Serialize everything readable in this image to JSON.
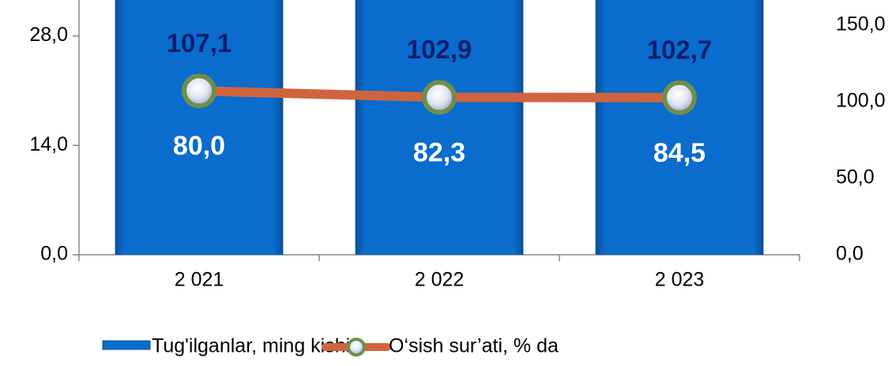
{
  "chart_data": {
    "type": "bar_line",
    "categories": [
      "2 021",
      "2 022",
      "2 023"
    ],
    "series": [
      {
        "name": "Tug'ilganlar, ming kishi",
        "color": "#0a6ccc",
        "values": [
          80.0,
          82.3,
          84.5
        ],
        "value_labels": [
          "80,0",
          "82,3",
          "84,5"
        ]
      },
      {
        "name": "O‘sish sur’ati, % da",
        "color": "#d0643f",
        "axis": "y2",
        "values": [
          107.1,
          102.9,
          102.7
        ],
        "value_labels": [
          "107,1",
          "102,9",
          "102,7"
        ]
      }
    ],
    "ylim": [
      0,
      32.6
    ],
    "yticks": [
      {
        "value": 0,
        "label": "0,0"
      },
      {
        "value": 14,
        "label": "14,0"
      },
      {
        "value": 28,
        "label": "28,0"
      }
    ],
    "y2lim": [
      0,
      166.5
    ],
    "y2ticks": [
      {
        "value": 0,
        "label": "0,0"
      },
      {
        "value": 50,
        "label": "50,0"
      },
      {
        "value": 100,
        "label": "100,0"
      },
      {
        "value": 150,
        "label": "150,0"
      }
    ]
  }
}
